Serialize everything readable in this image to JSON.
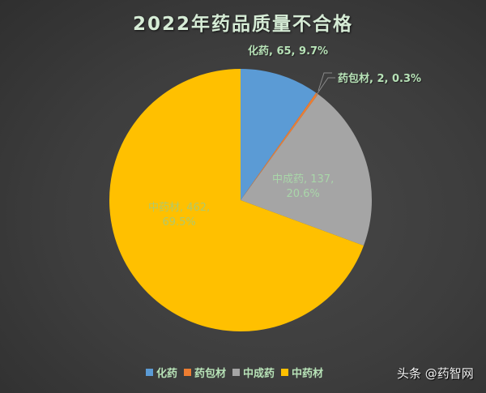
{
  "chart_data": {
    "type": "pie",
    "title": "2022年药品质量不合格",
    "categories": [
      "化药",
      "药包材",
      "中成药",
      "中药材"
    ],
    "values": [
      65,
      2,
      137,
      462
    ],
    "percentages": [
      9.7,
      0.3,
      20.6,
      69.5
    ],
    "colors": [
      "#5b9bd5",
      "#ed7d31",
      "#a5a5a5",
      "#ffc000"
    ],
    "data_labels": [
      "化药, 65, 9.7%",
      "药包材, 2, 0.3%",
      "中成药, 137, 20.6%",
      "中药材, 462, 69.5%"
    ],
    "legend_position": "bottom",
    "start_angle_deg": 0
  },
  "labels": {
    "huayao": "化药, 65, 9.7%",
    "baocai": "药包材, 2, 0.3%",
    "zcy_line1": "中成药, 137,",
    "zcy_line2": "20.6%",
    "zyc_line1": "中药材, 462,",
    "zyc_line2": "69.5%"
  },
  "legend": {
    "items": [
      {
        "label": "化药",
        "color": "#5b9bd5"
      },
      {
        "label": "药包材",
        "color": "#ed7d31"
      },
      {
        "label": "中成药",
        "color": "#a5a5a5"
      },
      {
        "label": "中药材",
        "color": "#ffc000"
      }
    ]
  },
  "watermark": "头条 @药智网"
}
